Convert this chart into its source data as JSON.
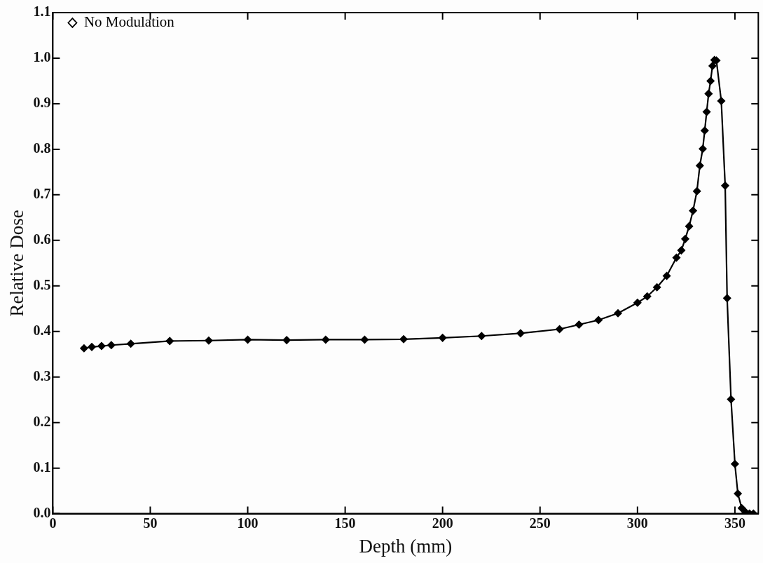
{
  "chart_data": {
    "type": "line",
    "xlabel": "Depth (mm)",
    "ylabel": "Relative Dose",
    "xlim": [
      0,
      362
    ],
    "xticks": [
      0,
      50,
      100,
      150,
      200,
      250,
      300,
      350
    ],
    "ylim": [
      0,
      1.1
    ],
    "yticks": [
      {
        "value": 0,
        "label": "0.0"
      },
      {
        "value": 0.1,
        "label": "0.1"
      },
      {
        "value": 0.2,
        "label": "0.2"
      },
      {
        "value": 0.3,
        "label": "0.3"
      },
      {
        "value": 0.4,
        "label": "0.4"
      },
      {
        "value": 0.5,
        "label": "0.5"
      },
      {
        "value": 0.6,
        "label": "0.6"
      },
      {
        "value": 0.7,
        "label": "0.7"
      },
      {
        "value": 0.8,
        "label": "0.8"
      },
      {
        "value": 0.9,
        "label": "0.9"
      },
      {
        "value": 1,
        "label": "1.0"
      },
      {
        "value": 1.1,
        "label": "1.1"
      }
    ],
    "grid": false,
    "legend": "top left",
    "marker": "diamond",
    "line_style": "solid",
    "series": [
      {
        "name": "No Modulation",
        "color": "#000000",
        "x": [
          16,
          20,
          25,
          30,
          40,
          60,
          80,
          100,
          120,
          140,
          160,
          180,
          200,
          220,
          240,
          260,
          270,
          280,
          290,
          300,
          305,
          310,
          315,
          320,
          322.5,
          324.5,
          326.5,
          328.5,
          330.5,
          332,
          333.5,
          334.5,
          335.5,
          336.5,
          337.5,
          338.5,
          339.5,
          340.5,
          343,
          345,
          346,
          348,
          350,
          351.5,
          353.5,
          355.5,
          357.5,
          359.5
        ],
        "values": [
          0.363,
          0.366,
          0.368,
          0.37,
          0.373,
          0.379,
          0.38,
          0.382,
          0.381,
          0.382,
          0.382,
          0.383,
          0.386,
          0.39,
          0.396,
          0.405,
          0.415,
          0.425,
          0.44,
          0.463,
          0.477,
          0.497,
          0.522,
          0.562,
          0.578,
          0.603,
          0.631,
          0.665,
          0.708,
          0.764,
          0.801,
          0.841,
          0.882,
          0.922,
          0.95,
          0.983,
          0.996,
          0.995,
          0.906,
          0.72,
          0.473,
          0.251,
          0.109,
          0.044,
          0.012,
          0.003,
          0,
          0
        ]
      }
    ]
  }
}
